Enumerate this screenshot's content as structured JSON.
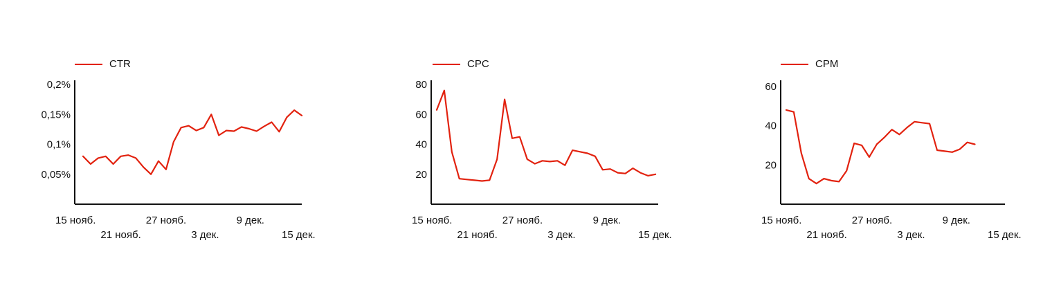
{
  "colors": {
    "line": "#e2220f",
    "axis": "#111111"
  },
  "chart_data": [
    {
      "type": "line",
      "legend": "CTR",
      "series": [
        {
          "name": "CTR",
          "values": [
            0.08,
            0.067,
            0.077,
            0.08,
            0.067,
            0.08,
            0.082,
            0.077,
            0.062,
            0.05,
            0.072,
            0.058,
            0.104,
            0.128,
            0.131,
            0.123,
            0.128,
            0.15,
            0.115,
            0.123,
            0.122,
            0.129,
            0.126,
            0.122,
            0.13,
            0.137,
            0.121,
            0.145,
            0.157,
            0.148
          ]
        }
      ],
      "x_start_label": "15 нояб.",
      "x_ticks": [
        {
          "label": "15 нояб.",
          "index": 0,
          "row": 0
        },
        {
          "label": "21 нояб.",
          "index": 6,
          "row": 1
        },
        {
          "label": "27 нояб.",
          "index": 12,
          "row": 0
        },
        {
          "label": "3 дек.",
          "index": 18,
          "row": 1
        },
        {
          "label": "9 дек.",
          "index": 24,
          "row": 0
        },
        {
          "label": "15 дек.",
          "index": 30,
          "row": 1
        }
      ],
      "y_ticks": [
        {
          "value": 0.05,
          "label": "0,05%"
        },
        {
          "value": 0.1,
          "label": "0,1%"
        },
        {
          "value": 0.15,
          "label": "0,15%"
        },
        {
          "value": 0.2,
          "label": "0,2%"
        }
      ],
      "ylim": [
        0,
        0.2
      ]
    },
    {
      "type": "line",
      "legend": "CPC",
      "series": [
        {
          "name": "CPC",
          "values": [
            63,
            76,
            35,
            17,
            16.5,
            16,
            15.5,
            16,
            30,
            70,
            44,
            45,
            30,
            27,
            29,
            28.5,
            29,
            26,
            36,
            35,
            34,
            32,
            23,
            23.5,
            21,
            20.5,
            24,
            21,
            19,
            20
          ]
        }
      ],
      "x_ticks": [
        {
          "label": "15 нояб.",
          "index": 0,
          "row": 0
        },
        {
          "label": "21 нояб.",
          "index": 6,
          "row": 1
        },
        {
          "label": "27 нояб.",
          "index": 12,
          "row": 0
        },
        {
          "label": "3 дек.",
          "index": 18,
          "row": 1
        },
        {
          "label": "9 дек.",
          "index": 24,
          "row": 0
        },
        {
          "label": "15 дек.",
          "index": 30,
          "row": 1
        }
      ],
      "y_ticks": [
        {
          "value": 20,
          "label": "20"
        },
        {
          "value": 40,
          "label": "40"
        },
        {
          "value": 60,
          "label": "60"
        },
        {
          "value": 80,
          "label": "80"
        }
      ],
      "ylim": [
        0,
        80
      ]
    },
    {
      "type": "line",
      "legend": "CPM",
      "series": [
        {
          "name": "CPM",
          "values": [
            48,
            47,
            26,
            13,
            10.5,
            13,
            12,
            11.5,
            17,
            31,
            30,
            24,
            30.5,
            34,
            38,
            35.5,
            39,
            42,
            41.5,
            41,
            27.5,
            27,
            26.5,
            28,
            31.5,
            30.5
          ]
        }
      ],
      "x_ticks": [
        {
          "label": "15 нояб.",
          "index": 0,
          "row": 0
        },
        {
          "label": "21 нояб.",
          "index": 6,
          "row": 1
        },
        {
          "label": "27 нояб.",
          "index": 12,
          "row": 0
        },
        {
          "label": "3 дек.",
          "index": 18,
          "row": 1
        },
        {
          "label": "9 дек.",
          "index": 24,
          "row": 0
        },
        {
          "label": "15 дек.",
          "index": 30,
          "row": 1
        }
      ],
      "y_ticks": [
        {
          "value": 20,
          "label": "20"
        },
        {
          "value": 40,
          "label": "40"
        },
        {
          "value": 60,
          "label": "60"
        }
      ],
      "ylim": [
        0,
        61
      ]
    }
  ]
}
